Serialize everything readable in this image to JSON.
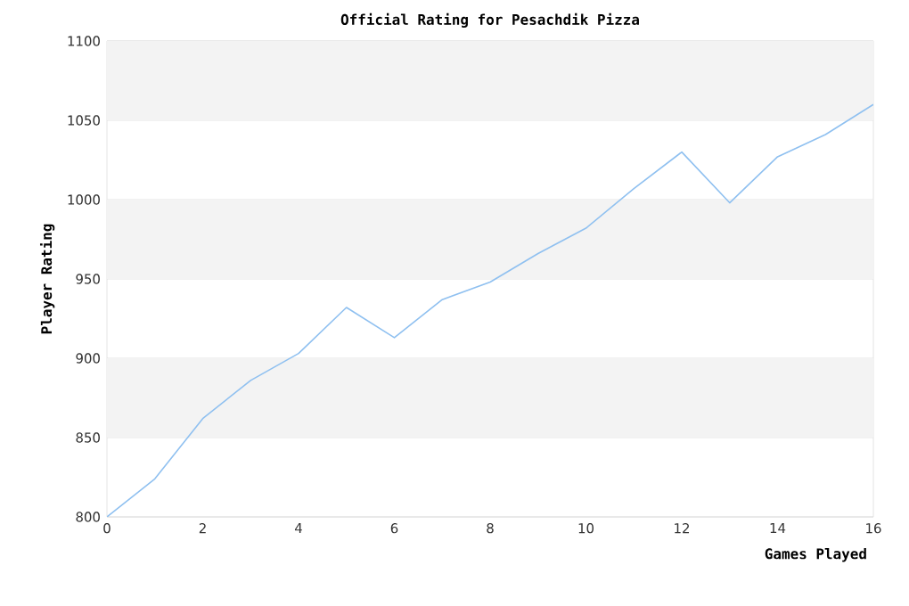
{
  "chart_data": {
    "type": "line",
    "title": "Official Rating for Pesachdik Pizza",
    "xlabel": "Games Played",
    "ylabel": "Player Rating",
    "x": [
      0,
      1,
      2,
      3,
      4,
      5,
      6,
      7,
      8,
      9,
      10,
      11,
      12,
      13,
      14,
      15,
      16
    ],
    "series": [
      {
        "color": "#8fc0f0",
        "values": [
          800,
          824,
          862,
          886,
          903,
          932,
          913,
          937,
          948,
          966,
          982,
          1007,
          1030,
          998,
          1027,
          1041,
          1060
        ]
      }
    ],
    "xlim": [
      0,
      16
    ],
    "ylim": [
      800,
      1100
    ],
    "xticks": [
      0,
      2,
      4,
      6,
      8,
      10,
      12,
      14,
      16
    ],
    "yticks": [
      800,
      850,
      900,
      950,
      1000,
      1050,
      1100
    ],
    "grid": "y",
    "marker": "none",
    "line_style": "solid"
  }
}
